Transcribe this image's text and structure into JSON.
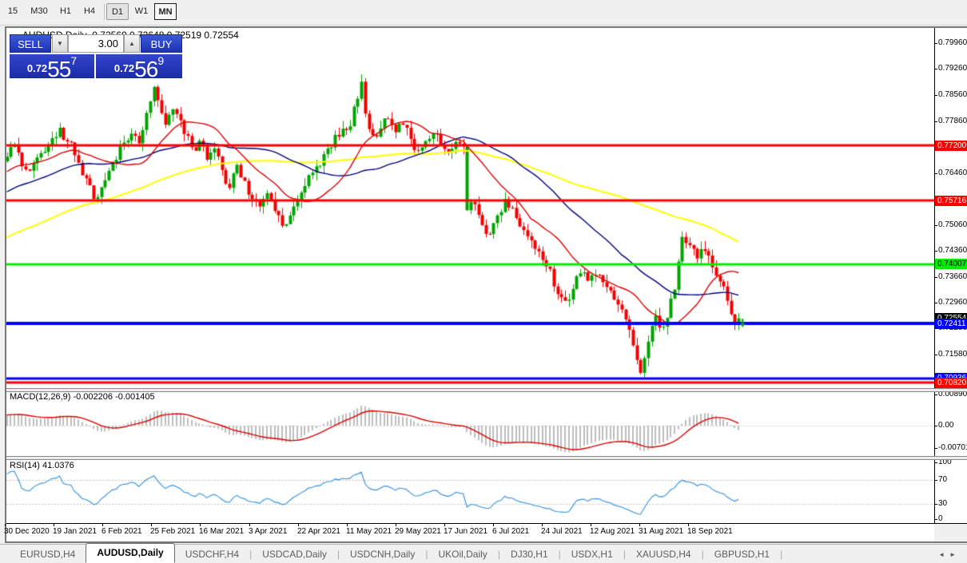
{
  "toolbar": {
    "items": [
      {
        "label": "15"
      },
      {
        "label": "M30"
      },
      {
        "label": "H1"
      },
      {
        "label": "H4"
      },
      {
        "sep": true
      },
      {
        "label": "D1",
        "active": true
      },
      {
        "label": "W1"
      },
      {
        "label": "MN",
        "focused": true
      }
    ]
  },
  "header": {
    "collapse_icon": "▲",
    "title": "AUDUSD,Daily",
    "ohlc": "0.72560 0.72648 0.72519 0.72554"
  },
  "trade_panel": {
    "sell_label": "SELL",
    "buy_label": "BUY",
    "volume": "3.00",
    "spin_down_icon": "▼",
    "spin_up_icon": "▲",
    "sell_price": {
      "prefix": "0.72",
      "big": "55",
      "sup": "7"
    },
    "buy_price": {
      "prefix": "0.72",
      "big": "56",
      "sup": "9"
    }
  },
  "indicator_labels": {
    "macd": "MACD(12,26,9) -0.002206 -0.001405",
    "rsi": "RSI(14) 41.0376"
  },
  "tab_bar": {
    "tabs": [
      "EURUSD,H4",
      "AUDUSD,Daily",
      "USDCHF,H4",
      "USDCAD,Daily",
      "USDCNH,Daily",
      "UKOil,Daily",
      "DJ30,H1",
      "USDX,H1",
      "XAUUSD,H4",
      "GBPUSD,H1"
    ],
    "active_index": 1,
    "separator": "|",
    "scroll_left_icon": "◄",
    "scroll_right_icon": "►"
  },
  "chart_data": {
    "type": "candlestick",
    "symbol": "AUDUSD",
    "timeframe": "Daily",
    "current_price": 0.72554,
    "price_axis_ticks": [
      "0.79960",
      "0.79260",
      "0.78560",
      "0.77860",
      "0.76460",
      "0.75060",
      "0.74360",
      "0.73660",
      "0.72960",
      "0.72280",
      "0.71580"
    ],
    "horizontal_lines": [
      {
        "price": 0.772,
        "color": "#ff0000",
        "thickness": 3,
        "tag_fg": "#ffffff",
        "tag": "0.77200"
      },
      {
        "price": 0.75716,
        "color": "#ff0000",
        "thickness": 3,
        "tag_fg": "#ffffff",
        "tag": "0.75716"
      },
      {
        "price": 0.74007,
        "color": "#00ee00",
        "thickness": 3,
        "tag_fg": "#000000",
        "tag": "0.74007"
      },
      {
        "price": 0.72411,
        "color": "#0000ff",
        "thickness": 4,
        "tag_fg": "#ffffff",
        "tag": "0.72411"
      },
      {
        "price": 0.70936,
        "color": "#0000ff",
        "thickness": 3,
        "tag_fg": "#ffffff",
        "tag": "0.70936"
      },
      {
        "price": 0.7082,
        "color": "#ff0000",
        "thickness": 3,
        "tag_fg": "#ffffff",
        "tag": "0.70820"
      }
    ],
    "current_price_tag": {
      "text": "0.72554",
      "bg": "#000000",
      "fg": "#ffffff"
    },
    "date_labels": [
      "30 Dec 2020",
      "19 Jan 2021",
      "6 Feb 2021",
      "25 Feb 2021",
      "16 Mar 2021",
      "3 Apr 2021",
      "22 Apr 2021",
      "11 May 2021",
      "29 May 2021",
      "17 Jun 2021",
      "6 Jul 2021",
      "24 Jul 2021",
      "12 Aug 2021",
      "31 Aug 2021",
      "18 Sep 2021"
    ],
    "macd_axis": {
      "top": "0.008904",
      "zero": "0.00",
      "bottom": "-0.00701"
    },
    "rsi_axis": {
      "ticks": [
        "100",
        "70",
        "30",
        "0"
      ],
      "dashed_levels": [
        70,
        30
      ]
    },
    "colors": {
      "candle_up": "#00a400",
      "candle_down": "#f40000",
      "ma_fast": "#dd0000",
      "ma_mid": "#000080",
      "ma_slow": "#ffff00",
      "macd_bar": "#bdbdbd",
      "macd_signal": "#dd0000",
      "rsi_line": "#2f8fe0"
    },
    "ma_periods": {
      "fast": 18,
      "mid": 42,
      "slow": 95
    },
    "macd_params": {
      "fast": 12,
      "slow": 26,
      "signal": 9
    },
    "rsi_period": 14,
    "noise_seed": 11,
    "noise": 0.0016,
    "wick": 0.0022,
    "prehistory": {
      "days": 130,
      "start": 0.709,
      "noise": 0.0012
    },
    "bull_overrides": [
      122
    ],
    "last_candle_marker": {
      "type": "arrow-down",
      "color": "#00a400"
    },
    "price_path_anchors": [
      [
        0,
        0.769
      ],
      [
        2,
        0.7722
      ],
      [
        4,
        0.7664
      ],
      [
        6,
        0.7652
      ],
      [
        8,
        0.7688
      ],
      [
        10,
        0.7703
      ],
      [
        12,
        0.774
      ],
      [
        14,
        0.7768
      ],
      [
        16,
        0.7731
      ],
      [
        18,
        0.7694
      ],
      [
        20,
        0.764
      ],
      [
        23,
        0.7576
      ],
      [
        25,
        0.7608
      ],
      [
        27,
        0.7652
      ],
      [
        30,
        0.7718
      ],
      [
        33,
        0.7752
      ],
      [
        35,
        0.7726
      ],
      [
        37,
        0.7808
      ],
      [
        39,
        0.7878
      ],
      [
        40,
        0.7842
      ],
      [
        42,
        0.7776
      ],
      [
        44,
        0.7818
      ],
      [
        46,
        0.7788
      ],
      [
        48,
        0.7746
      ],
      [
        50,
        0.7706
      ],
      [
        51,
        0.7733
      ],
      [
        53,
        0.7682
      ],
      [
        55,
        0.7712
      ],
      [
        57,
        0.7654
      ],
      [
        59,
        0.7606
      ],
      [
        61,
        0.7668
      ],
      [
        63,
        0.7625
      ],
      [
        65,
        0.7576
      ],
      [
        67,
        0.7556
      ],
      [
        69,
        0.7592
      ],
      [
        71,
        0.7544
      ],
      [
        73,
        0.7504
      ],
      [
        75,
        0.7532
      ],
      [
        77,
        0.7572
      ],
      [
        79,
        0.7611
      ],
      [
        82,
        0.7664
      ],
      [
        85,
        0.7712
      ],
      [
        88,
        0.7744
      ],
      [
        91,
        0.7772
      ],
      [
        93,
        0.7846
      ],
      [
        94,
        0.7892
      ],
      [
        95,
        0.7806
      ],
      [
        97,
        0.7748
      ],
      [
        99,
        0.7766
      ],
      [
        101,
        0.7792
      ],
      [
        103,
        0.7756
      ],
      [
        105,
        0.7776
      ],
      [
        107,
        0.7738
      ],
      [
        109,
        0.7706
      ],
      [
        111,
        0.7732
      ],
      [
        113,
        0.7752
      ],
      [
        115,
        0.7722
      ],
      [
        117,
        0.7702
      ],
      [
        119,
        0.773
      ],
      [
        121,
        0.7718
      ],
      [
        122,
        0.7546
      ],
      [
        124,
        0.7562
      ],
      [
        126,
        0.7506
      ],
      [
        128,
        0.7482
      ],
      [
        130,
        0.7532
      ],
      [
        132,
        0.7576
      ],
      [
        134,
        0.7552
      ],
      [
        136,
        0.7502
      ],
      [
        138,
        0.7476
      ],
      [
        140,
        0.7442
      ],
      [
        142,
        0.7412
      ],
      [
        144,
        0.7388
      ],
      [
        146,
        0.732
      ],
      [
        148,
        0.7302
      ],
      [
        150,
        0.7334
      ],
      [
        152,
        0.7376
      ],
      [
        154,
        0.7356
      ],
      [
        156,
        0.7372
      ],
      [
        158,
        0.7352
      ],
      [
        160,
        0.733
      ],
      [
        162,
        0.7292
      ],
      [
        164,
        0.7252
      ],
      [
        166,
        0.7182
      ],
      [
        168,
        0.7108
      ],
      [
        170,
        0.7192
      ],
      [
        172,
        0.7262
      ],
      [
        173,
        0.723
      ],
      [
        175,
        0.7256
      ],
      [
        177,
        0.7332
      ],
      [
        179,
        0.7474
      ],
      [
        181,
        0.7452
      ],
      [
        183,
        0.7416
      ],
      [
        185,
        0.7436
      ],
      [
        187,
        0.7392
      ],
      [
        189,
        0.7354
      ],
      [
        191,
        0.7302
      ],
      [
        192,
        0.7266
      ],
      [
        193,
        0.7238
      ],
      [
        194,
        0.7255
      ]
    ]
  }
}
